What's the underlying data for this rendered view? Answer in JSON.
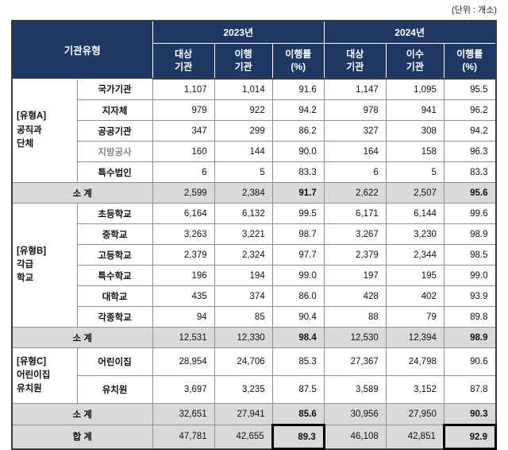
{
  "unit_caption": "(단위 : 개소)",
  "colors": {
    "header_bg": "#1f3864",
    "header_text": "#ffffff",
    "subtotal_bg": "#d9d9d9",
    "outer_border": "#3a3a3a",
    "grid_line": "#8f8f8f",
    "muted_label": "#848484",
    "highlight_box_border": "#000000"
  },
  "headers": {
    "org_type": "기관유형",
    "years": [
      "2023년",
      "2024년"
    ],
    "sub": [
      "대상\n기관",
      "이행\n기관",
      "이행률\n(%)",
      "대상\n기관",
      "이수\n기관",
      "이행률\n(%)"
    ]
  },
  "sections": [
    {
      "group_label": "[유형A]\n공직과\n단체",
      "rows": [
        {
          "label": "국가기관",
          "muted": false,
          "values": [
            "1,107",
            "1,014",
            "91.6",
            "1,147",
            "1,095",
            "95.5"
          ]
        },
        {
          "label": "지자체",
          "muted": false,
          "values": [
            "979",
            "922",
            "94.2",
            "978",
            "941",
            "96.2"
          ]
        },
        {
          "label": "공공기관",
          "muted": false,
          "values": [
            "347",
            "299",
            "86.2",
            "327",
            "308",
            "94.2"
          ]
        },
        {
          "label": "지방공사",
          "muted": true,
          "values": [
            "160",
            "144",
            "90.0",
            "164",
            "158",
            "96.3"
          ]
        },
        {
          "label": "특수법인",
          "muted": false,
          "values": [
            "6",
            "5",
            "83.3",
            "6",
            "5",
            "83.3"
          ]
        }
      ],
      "subtotal": {
        "label": "소 계",
        "values": [
          "2,599",
          "2,384",
          "91.7",
          "2,622",
          "2,507",
          "95.6"
        ]
      }
    },
    {
      "group_label": "[유형B]\n각급\n학교",
      "rows": [
        {
          "label": "초등학교",
          "muted": false,
          "values": [
            "6,164",
            "6,132",
            "99.5",
            "6,171",
            "6,144",
            "99.6"
          ]
        },
        {
          "label": "중학교",
          "muted": false,
          "values": [
            "3,263",
            "3,221",
            "98.7",
            "3,267",
            "3,230",
            "98.9"
          ]
        },
        {
          "label": "고등학교",
          "muted": false,
          "values": [
            "2,379",
            "2,324",
            "97.7",
            "2,379",
            "2,344",
            "98.5"
          ]
        },
        {
          "label": "특수학교",
          "muted": false,
          "values": [
            "196",
            "194",
            "99.0",
            "197",
            "195",
            "99.0"
          ]
        },
        {
          "label": "대학교",
          "muted": false,
          "values": [
            "435",
            "374",
            "86.0",
            "428",
            "402",
            "93.9"
          ]
        },
        {
          "label": "각종학교",
          "muted": false,
          "values": [
            "94",
            "85",
            "90.4",
            "88",
            "79",
            "89.8"
          ]
        }
      ],
      "subtotal": {
        "label": "소 계",
        "values": [
          "12,531",
          "12,330",
          "98.4",
          "12,530",
          "12,394",
          "98.9"
        ]
      }
    },
    {
      "group_label": "[유형C]\n어린이집\n유치원",
      "rows": [
        {
          "label": "어린이집",
          "muted": false,
          "values": [
            "28,954",
            "24,706",
            "85.3",
            "27,367",
            "24,798",
            "90.6"
          ]
        },
        {
          "label": "유치원",
          "muted": false,
          "values": [
            "3,697",
            "3,235",
            "87.5",
            "3,589",
            "3,152",
            "87.8"
          ]
        }
      ],
      "subtotal": {
        "label": "소 계",
        "values": [
          "32,651",
          "27,941",
          "85.6",
          "30,956",
          "27,950",
          "90.3"
        ]
      }
    }
  ],
  "total": {
    "label": "합 계",
    "values": [
      "47,781",
      "42,655",
      "89.3",
      "46,108",
      "42,851",
      "92.9"
    ]
  }
}
